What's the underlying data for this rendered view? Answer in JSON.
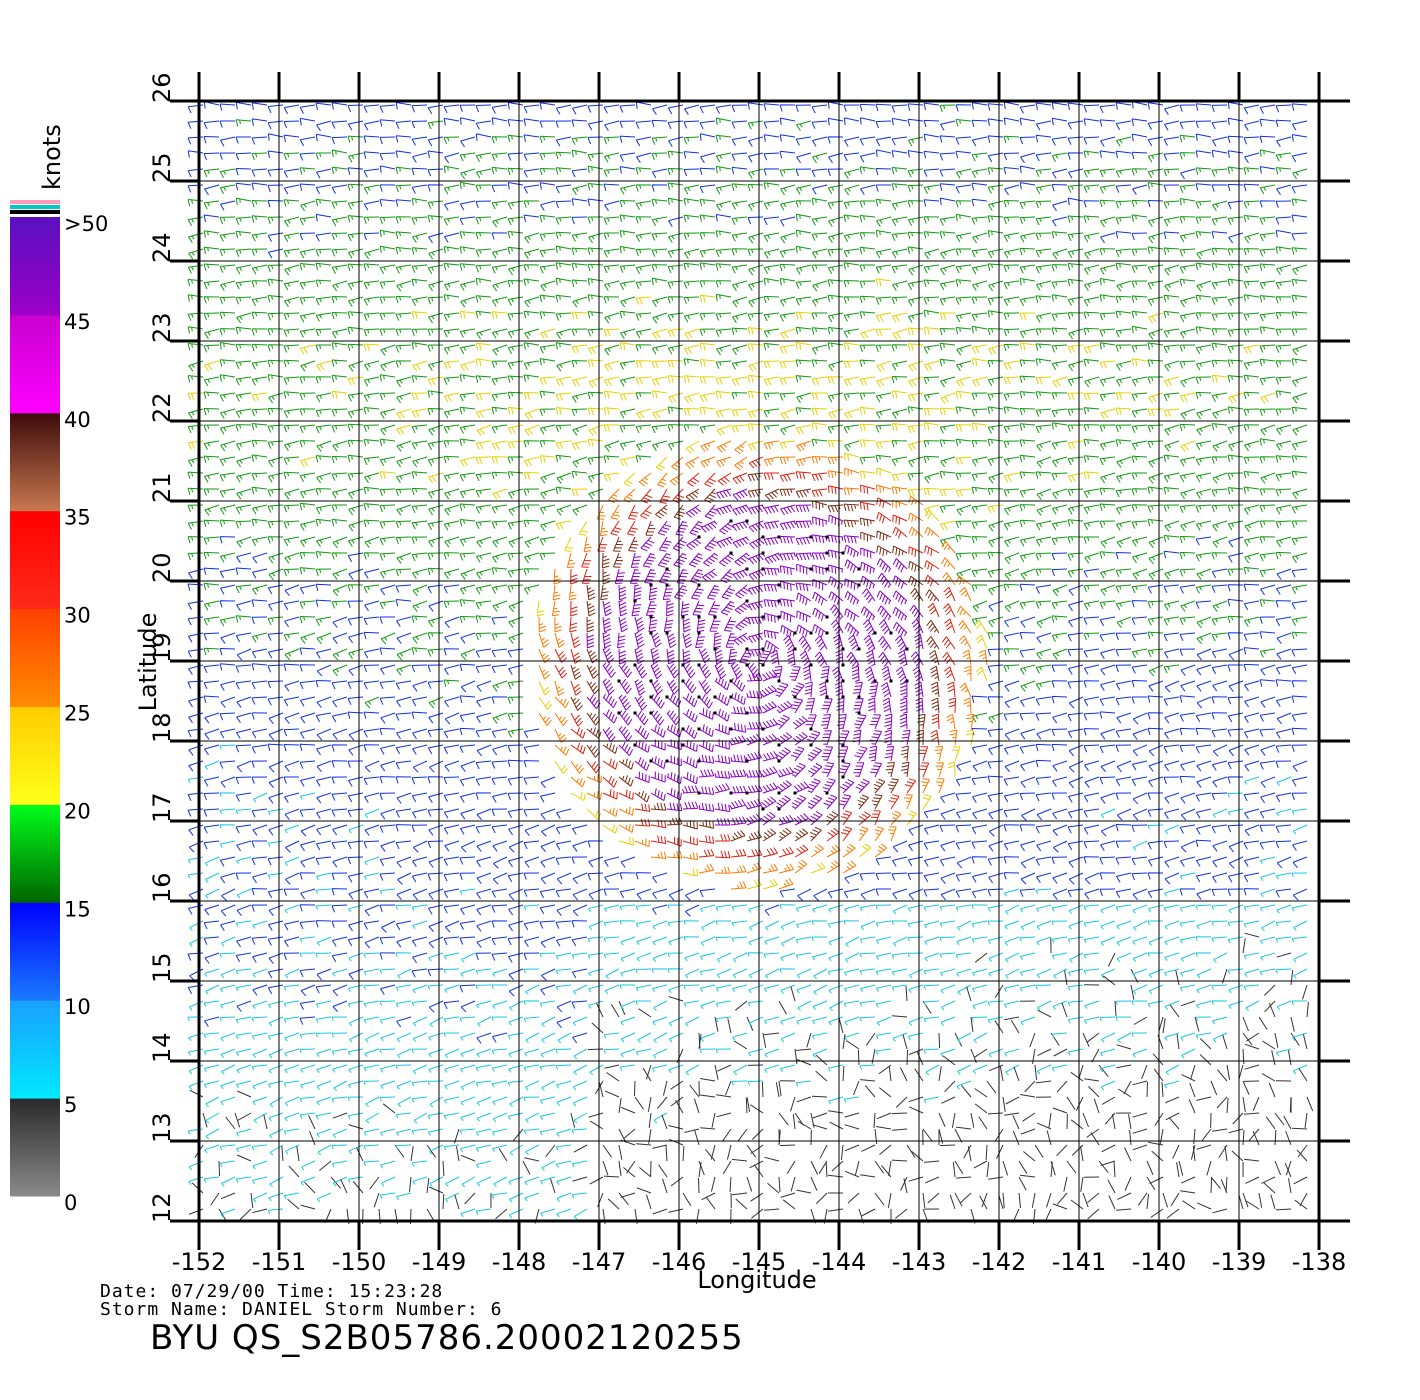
{
  "map": {
    "lon_ticks": [
      "-152",
      "-151",
      "-150",
      "-149",
      "-148",
      "-147",
      "-146",
      "-145",
      "-144",
      "-143",
      "-142",
      "-141",
      "-140",
      "-139",
      "-138"
    ],
    "lat_ticks": [
      "12",
      "13",
      "14",
      "15",
      "16",
      "17",
      "18",
      "19",
      "20",
      "21",
      "22",
      "23",
      "24",
      "25",
      "26"
    ],
    "x_label": "Longitude",
    "y_label": "Latitude",
    "lon_range": [
      -152,
      -138
    ],
    "lat_range": [
      12,
      26
    ],
    "grid": true,
    "storm_center": {
      "lon": -145.0,
      "lat": 19.0
    }
  },
  "legend": {
    "units": "knots",
    "ticks": [
      ">50",
      "45",
      "40",
      "35",
      "30",
      "25",
      "20",
      "15",
      "10",
      "5",
      "0"
    ],
    "bands": [
      {
        "from": 0,
        "to": 5,
        "colors": [
          "#8a8a8a",
          "#2a2a2a"
        ]
      },
      {
        "from": 5,
        "to": 10,
        "colors": [
          "#00e8ff",
          "#1aa0ff"
        ]
      },
      {
        "from": 10,
        "to": 15,
        "colors": [
          "#1a7aff",
          "#0000ff"
        ]
      },
      {
        "from": 15,
        "to": 20,
        "colors": [
          "#006400",
          "#00ff1a"
        ]
      },
      {
        "from": 20,
        "to": 25,
        "colors": [
          "#ffff1a",
          "#ffcc00"
        ]
      },
      {
        "from": 25,
        "to": 30,
        "colors": [
          "#ff8c00",
          "#ff4000"
        ]
      },
      {
        "from": 30,
        "to": 35,
        "colors": [
          "#ff2a1a",
          "#ff0000"
        ]
      },
      {
        "from": 35,
        "to": 40,
        "colors": [
          "#c87850",
          "#3d0a0a"
        ]
      },
      {
        "from": 40,
        "to": 45,
        "colors": [
          "#ff00ff",
          "#c800d0"
        ]
      },
      {
        "from": 45,
        "to": 50,
        "colors": [
          "#9c00c8",
          "#5a10c0"
        ]
      }
    ],
    "top_stripes": [
      "#ff9ab8",
      "#00c8c8",
      "#000000"
    ]
  },
  "footer": {
    "date_line": "Date: 07/29/00   Time: 15:23:28",
    "storm_line": "Storm Name: DANIEL   Storm Number: 6",
    "product": "BYU QS_S2B05786.20002120255"
  }
}
